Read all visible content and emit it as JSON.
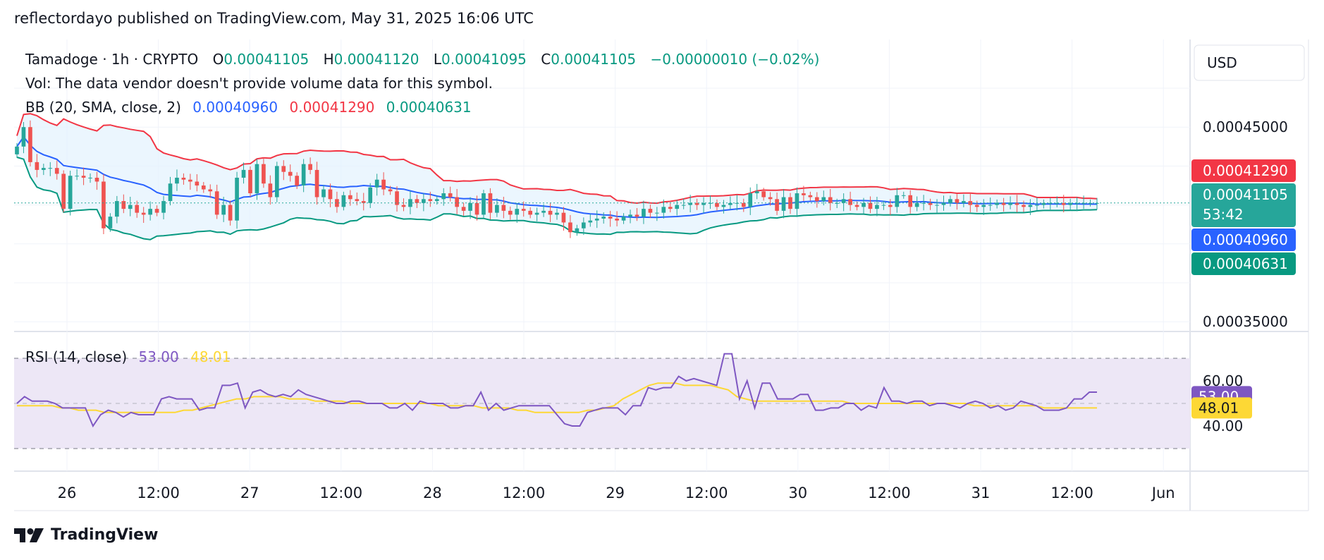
{
  "header": {
    "published": "reflectordayo published on TradingView.com, May 31, 2025 16:06 UTC"
  },
  "legend": {
    "symbol": "Tamadoge · 1h · CRYPTO",
    "o_label": "O",
    "o_value": "0.00041105",
    "h_label": "H",
    "h_value": "0.00041120",
    "l_label": "L",
    "l_value": "0.00041095",
    "c_label": "C",
    "c_value": "0.00041105",
    "change": "−0.00000010 (−0.02%)",
    "vol": "Vol: The data vendor doesn't provide volume data for this symbol.",
    "bb_label": "BB (20, SMA, close, 2)",
    "bb_basis": "0.00040960",
    "bb_upper": "0.00041290",
    "bb_lower": "0.00040631"
  },
  "rsi_legend": {
    "label": "RSI (14, close)",
    "rsi": "53.00",
    "ma": "48.01"
  },
  "price_axis": {
    "currency": "USD",
    "ticks": [
      "0.00045000",
      "0.00035000"
    ],
    "tick_values": [
      0.00045,
      0.00035
    ],
    "tags": {
      "upper": "0.00041290",
      "last": "0.00041105",
      "countdown": "53:42",
      "basis": "0.00040960",
      "lower": "0.00040631"
    }
  },
  "rsi_axis": {
    "ticks": [
      "60.00",
      "40.00"
    ],
    "tick_values": [
      60,
      40
    ],
    "tags": {
      "rsi": "53.00",
      "ma": "48.01"
    }
  },
  "time_axis": {
    "labels": [
      "26",
      "12:00",
      "27",
      "12:00",
      "28",
      "12:00",
      "29",
      "12:00",
      "30",
      "12:00",
      "31",
      "12:00",
      "Jun"
    ]
  },
  "colors": {
    "up": "#26a69a",
    "down": "#ef5350",
    "bb_upper": "#f23645",
    "bb_basis": "#2962ff",
    "bb_lower": "#089981",
    "bb_fill": "#e3f2fd",
    "rsi": "#7e57c2",
    "rsi_ma": "#fdd835",
    "rsi_band": "#ede7f6",
    "grid": "#f0f3fa",
    "text": "#131722"
  },
  "chart_data": [
    {
      "type": "candlestick",
      "title": "Tamadoge · 1h · CRYPTO",
      "x_range": [
        "2025-05-25 14:00",
        "2025-06-01 00:00"
      ],
      "ylim": [
        0.000345,
        0.000495
      ],
      "grid": true,
      "last_close": 0.00041105,
      "bollinger": {
        "basis": 0.0004096,
        "upper": 0.0004129,
        "lower": 0.00040631
      },
      "closes": [
        0.00044,
        0.00045,
        0.000432,
        0.000428,
        0.000429,
        0.000429,
        0.000426,
        0.000408,
        0.000425,
        0.000425,
        0.000424,
        0.000424,
        0.000422,
        0.000398,
        0.000404,
        0.000412,
        0.000408,
        0.00041,
        0.000406,
        0.000405,
        0.000408,
        0.000406,
        0.000412,
        0.000421,
        0.000424,
        0.000423,
        0.000422,
        0.00042,
        0.000418,
        0.000417,
        0.000405,
        0.00041,
        0.000402,
        0.000424,
        0.000428,
        0.000416,
        0.000431,
        0.000421,
        0.000414,
        0.00043,
        0.000427,
        0.000425,
        0.00042,
        0.000431,
        0.000428,
        0.000414,
        0.000418,
        0.000413,
        0.000409,
        0.000415,
        0.000413,
        0.000412,
        0.000411,
        0.000419,
        0.000423,
        0.000418,
        0.000417,
        0.00041,
        0.000409,
        0.000413,
        0.000411,
        0.000413,
        0.000412,
        0.000413,
        0.000416,
        0.000414,
        0.000409,
        0.000407,
        0.000411,
        0.000405,
        0.000416,
        0.000406,
        0.00041,
        0.000407,
        0.000405,
        0.000408,
        0.000407,
        0.000405,
        0.000406,
        0.000407,
        0.000405,
        0.000406,
        0.000401,
        0.000396,
        0.000398,
        0.000401,
        0.000402,
        0.000403,
        0.000404,
        0.000403,
        0.000402,
        0.000404,
        0.000405,
        0.000404,
        0.000408,
        0.000406,
        0.000406,
        0.000409,
        0.000408,
        0.00041,
        0.00041,
        0.000411,
        0.00041,
        0.000411,
        0.000411,
        0.000409,
        0.00041,
        0.000411,
        0.000411,
        0.000409,
        0.000416,
        0.000417,
        0.000414,
        0.000413,
        0.000407,
        0.000414,
        0.000408,
        0.000416,
        0.000415,
        0.000414,
        0.000412,
        0.000414,
        0.000411,
        0.000411,
        0.000413,
        0.00041,
        0.000409,
        0.000411,
        0.000408,
        0.00041,
        0.00041,
        0.000409,
        0.000415,
        0.000415,
        0.000409,
        0.000411,
        0.000411,
        0.00041,
        0.00041,
        0.000411,
        0.000413,
        0.000411,
        0.000412,
        0.00041,
        0.000409,
        0.00041,
        0.00041,
        0.000411,
        0.00041,
        0.000411,
        0.00041,
        0.000409,
        0.00041,
        0.00041,
        0.000411,
        0.000411,
        0.000411,
        0.00041,
        0.000411,
        0.000411,
        0.000411,
        0.000411,
        0.000411
      ]
    },
    {
      "type": "line",
      "title": "RSI (14, close)",
      "ylim": [
        20,
        80
      ],
      "bands": [
        70,
        50,
        30
      ],
      "series": [
        {
          "name": "RSI",
          "last": 53.0,
          "values": [
            50,
            53,
            51,
            51,
            51,
            50,
            48,
            48,
            48,
            48,
            40,
            45,
            47,
            46,
            44,
            46,
            45,
            45,
            45,
            52,
            53,
            52,
            52,
            52,
            47,
            48,
            48,
            58,
            58,
            59,
            48,
            55,
            56,
            54,
            53,
            54,
            53,
            56,
            54,
            53,
            52,
            51,
            50,
            50,
            51,
            51,
            50,
            50,
            50,
            48,
            48,
            50,
            47,
            51,
            50,
            50,
            50,
            48,
            48,
            49,
            49,
            55,
            47,
            50,
            47,
            48,
            49,
            49,
            49,
            49,
            49,
            45,
            41,
            40,
            40,
            46,
            47,
            48,
            48,
            48,
            45,
            49,
            49,
            57,
            56,
            57,
            57,
            62,
            60,
            61,
            60,
            59,
            58,
            72,
            72,
            52,
            60,
            48,
            59,
            59,
            52,
            52,
            52,
            54,
            54,
            47,
            47,
            48,
            48,
            50,
            50,
            47,
            49,
            48,
            57,
            51,
            51,
            50,
            51,
            51,
            49,
            50,
            50,
            49,
            48,
            50,
            51,
            50,
            48,
            49,
            47,
            48,
            51,
            50,
            49,
            47,
            47,
            47,
            48,
            52,
            52,
            55,
            55
          ]
        },
        {
          "name": "RSI-based MA",
          "last": 48.01,
          "values": [
            49,
            49,
            49,
            49,
            49,
            48,
            48,
            47,
            47,
            47,
            46,
            46,
            46,
            46,
            46,
            46,
            46,
            46,
            46,
            47,
            47,
            48,
            49,
            50,
            51,
            52,
            52,
            53,
            53,
            53,
            53,
            52,
            52,
            52,
            51,
            51,
            51,
            51,
            50,
            50,
            50,
            50,
            50,
            50,
            50,
            50,
            50,
            50,
            49,
            49,
            49,
            49,
            49,
            48,
            48,
            48,
            48,
            47,
            47,
            46,
            46,
            46,
            46,
            46,
            46,
            47,
            47,
            48,
            49,
            52,
            54,
            56,
            58,
            59,
            59,
            59,
            58,
            58,
            58,
            58,
            57,
            56,
            53,
            52,
            51,
            51,
            51,
            51,
            51,
            51,
            51,
            51,
            51,
            51,
            51,
            50,
            50,
            50,
            50,
            50,
            50,
            50,
            50,
            50,
            50,
            50,
            50,
            50,
            50,
            49,
            49,
            49,
            49,
            49,
            49,
            49,
            49,
            48,
            48,
            48,
            48,
            48,
            48,
            48
          ]
        }
      ]
    }
  ]
}
